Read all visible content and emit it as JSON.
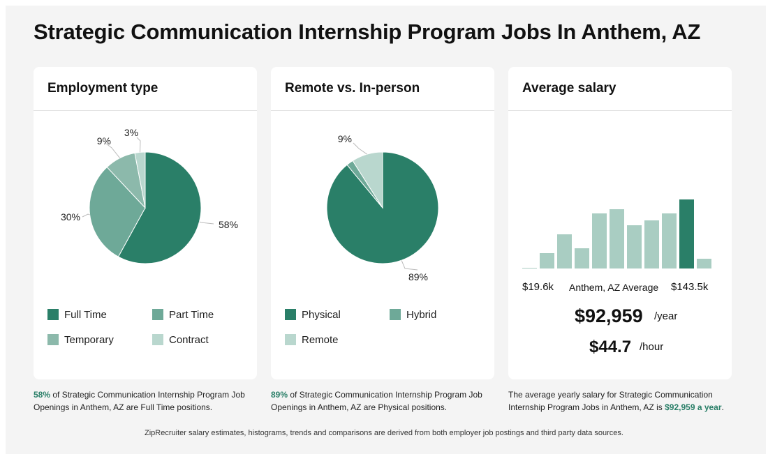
{
  "page": {
    "title": "Strategic Communication Internship Program Jobs In Anthem, AZ",
    "footer": "ZipRecruiter salary estimates, histograms, trends and comparisons are derived from both employer job postings and third party data sources."
  },
  "colors": {
    "primary": "#2a7f68",
    "secondary": "#6ea998",
    "tertiary": "#8cb9ab",
    "light": "#b9d7ce",
    "bar_light": "#a9cdc2"
  },
  "employment": {
    "title": "Employment type",
    "legend": [
      "Full Time",
      "Part Time",
      "Temporary",
      "Contract"
    ],
    "caption_pct": "58%",
    "caption_text": " of Strategic Communication Internship Program Job Openings in Anthem, AZ are Full Time positions."
  },
  "remote": {
    "title": "Remote vs. In-person",
    "legend": [
      "Physical",
      "Hybrid",
      "Remote"
    ],
    "caption_pct": "89%",
    "caption_text": " of Strategic Communication Internship Program Job Openings in Anthem, AZ are Physical positions."
  },
  "salary": {
    "title": "Average salary",
    "min_label": "$19.6k",
    "mid_label": "Anthem, AZ Average",
    "max_label": "$143.5k",
    "yearly": "$92,959",
    "yearly_unit": "/year",
    "hourly": "$44.7",
    "hourly_unit": "/hour",
    "caption_text": "The average yearly salary for Strategic Communication Internship Program Jobs in Anthem, AZ is ",
    "caption_value": "$92,959 a year",
    "caption_end": "."
  },
  "chart_data": [
    {
      "type": "pie",
      "title": "Employment type",
      "categories": [
        "Full Time",
        "Part Time",
        "Temporary",
        "Contract"
      ],
      "values": [
        58,
        30,
        9,
        3
      ],
      "labels": [
        "58%",
        "30%",
        "9%",
        "3%"
      ]
    },
    {
      "type": "pie",
      "title": "Remote vs. In-person",
      "categories": [
        "Physical",
        "Hybrid",
        "Remote"
      ],
      "values": [
        89,
        2,
        9
      ],
      "labels": [
        "89%",
        "",
        "9%"
      ]
    },
    {
      "type": "bar",
      "title": "Average salary",
      "categories": [
        "1",
        "2",
        "3",
        "4",
        "5",
        "6",
        "7",
        "8",
        "9",
        "10",
        "11"
      ],
      "values": [
        0.5,
        22,
        49,
        29,
        79,
        85,
        62,
        69,
        79,
        99,
        14
      ],
      "highlight_index": 9,
      "ylim": [
        0,
        100
      ]
    }
  ]
}
